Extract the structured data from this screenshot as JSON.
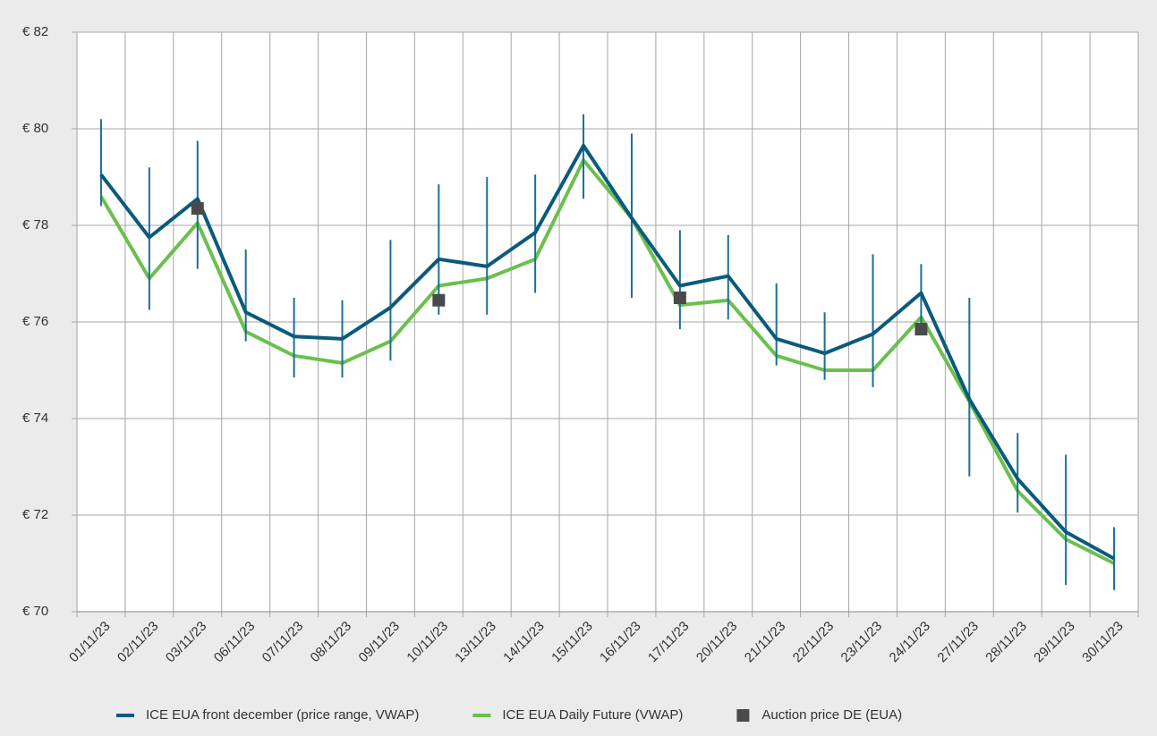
{
  "chart_data": {
    "type": "line",
    "categories": [
      "01/11/23",
      "02/11/23",
      "03/11/23",
      "06/11/23",
      "07/11/23",
      "08/11/23",
      "09/11/23",
      "10/11/23",
      "13/11/23",
      "14/11/23",
      "15/11/23",
      "16/11/23",
      "17/11/23",
      "20/11/23",
      "21/11/23",
      "22/11/23",
      "23/11/23",
      "24/11/23",
      "27/11/23",
      "28/11/23",
      "29/11/23",
      "30/11/23"
    ],
    "series": [
      {
        "name": "ICE EUA front december (price range, VWAP)",
        "color": "#0b5a7c",
        "range_color": "#1a6f98",
        "values": [
          79.05,
          77.75,
          78.55,
          76.2,
          75.7,
          75.65,
          76.3,
          77.3,
          77.15,
          77.85,
          79.65,
          78.15,
          76.75,
          76.95,
          75.65,
          75.35,
          75.75,
          76.6,
          74.4,
          72.75,
          71.65,
          71.1
        ],
        "low": [
          78.4,
          76.25,
          77.1,
          75.6,
          74.85,
          74.85,
          75.2,
          76.15,
          76.15,
          76.6,
          78.55,
          76.5,
          75.85,
          76.05,
          75.1,
          74.8,
          74.65,
          75.8,
          72.8,
          72.05,
          70.55,
          70.45
        ],
        "high": [
          80.2,
          79.2,
          79.75,
          77.5,
          76.5,
          76.45,
          77.7,
          78.85,
          79.0,
          79.05,
          80.3,
          79.9,
          77.9,
          77.8,
          76.8,
          76.2,
          77.4,
          77.2,
          76.5,
          73.7,
          73.25,
          71.75
        ]
      },
      {
        "name": "ICE EUA Daily Future (VWAP)",
        "color": "#6bbf4e",
        "values": [
          78.6,
          76.9,
          78.05,
          75.8,
          75.3,
          75.15,
          75.6,
          76.75,
          76.9,
          77.3,
          79.35,
          78.15,
          76.35,
          76.45,
          75.3,
          75.0,
          75.0,
          76.1,
          74.35,
          72.5,
          71.5,
          71.0
        ]
      },
      {
        "name": "Auction price DE (EUA)",
        "color": "#4a4a4a",
        "marker": "square",
        "values": [
          null,
          null,
          78.35,
          null,
          null,
          null,
          null,
          76.45,
          null,
          null,
          null,
          null,
          76.5,
          null,
          null,
          null,
          null,
          75.85,
          null,
          null,
          null,
          null
        ]
      }
    ],
    "ylim": [
      70,
      82
    ],
    "yticks": [
      {
        "value": 70,
        "label": "€ 70"
      },
      {
        "value": 72,
        "label": "€ 72"
      },
      {
        "value": 74,
        "label": "€ 74"
      },
      {
        "value": 76,
        "label": "€ 76"
      },
      {
        "value": 78,
        "label": "€ 78"
      },
      {
        "value": 80,
        "label": "€ 80"
      },
      {
        "value": 82,
        "label": "€ 82"
      }
    ],
    "grid": true,
    "legend": "bottom"
  }
}
